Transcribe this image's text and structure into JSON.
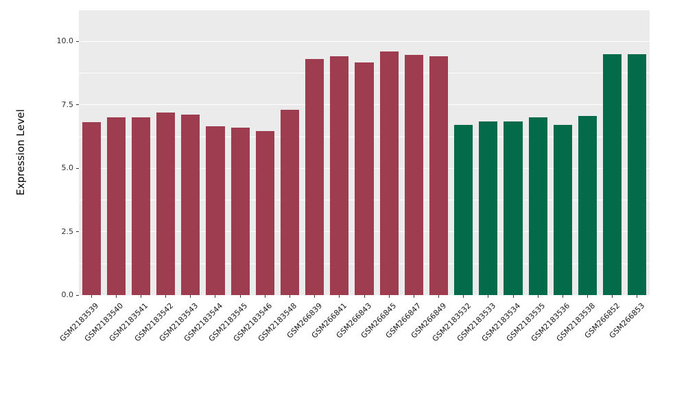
{
  "chart_data": {
    "type": "bar",
    "title": "",
    "ylabel": "Expression Level",
    "xlabel": "",
    "ylim": [
      0,
      10
    ],
    "yticks": [
      0,
      2.5,
      5,
      7.5,
      10
    ],
    "grid": true,
    "legend": "none",
    "panel_background": "#EBEBEB",
    "grid_color": "#FFFFFF",
    "palette": [
      "#9E3D4F",
      "#046B4A"
    ],
    "categories": [
      "GSM2183539",
      "GSM2183540",
      "GSM2183541",
      "GSM2183542",
      "GSM2183543",
      "GSM2183544",
      "GSM2183545",
      "GSM2183546",
      "GSM2183548",
      "GSM266839",
      "GSM266841",
      "GSM266843",
      "GSM266845",
      "GSM266847",
      "GSM266849",
      "GSM2183532",
      "GSM2183533",
      "GSM2183534",
      "GSM2183535",
      "GSM2183536",
      "GSM2183538",
      "GSM266852",
      "GSM266853"
    ],
    "values": [
      6.8,
      7.0,
      7.0,
      7.2,
      7.1,
      6.65,
      6.6,
      6.45,
      7.3,
      9.3,
      9.4,
      9.15,
      9.6,
      9.45,
      9.4,
      6.7,
      6.85,
      6.85,
      7.0,
      6.7,
      7.05,
      9.5,
      9.5
    ],
    "bar_color_index": [
      0,
      0,
      0,
      0,
      0,
      0,
      0,
      0,
      0,
      0,
      0,
      0,
      0,
      0,
      0,
      1,
      1,
      1,
      1,
      1,
      1,
      1,
      1
    ]
  }
}
